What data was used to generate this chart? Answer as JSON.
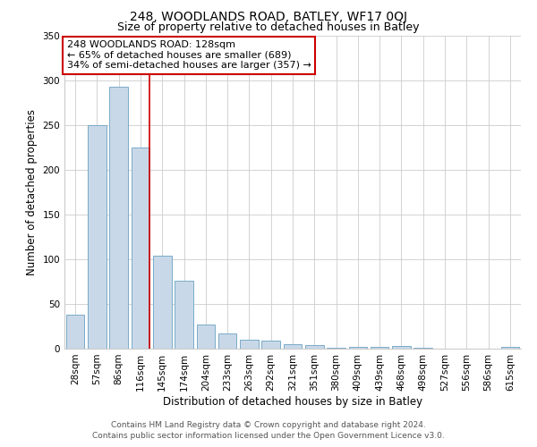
{
  "title": "248, WOODLANDS ROAD, BATLEY, WF17 0QJ",
  "subtitle": "Size of property relative to detached houses in Batley",
  "xlabel": "Distribution of detached houses by size in Batley",
  "ylabel": "Number of detached properties",
  "bar_labels": [
    "28sqm",
    "57sqm",
    "86sqm",
    "116sqm",
    "145sqm",
    "174sqm",
    "204sqm",
    "233sqm",
    "263sqm",
    "292sqm",
    "321sqm",
    "351sqm",
    "380sqm",
    "409sqm",
    "439sqm",
    "468sqm",
    "498sqm",
    "527sqm",
    "556sqm",
    "586sqm",
    "615sqm"
  ],
  "bar_values": [
    38,
    250,
    293,
    225,
    104,
    76,
    27,
    17,
    10,
    9,
    5,
    4,
    1,
    2,
    2,
    3,
    1,
    0,
    0,
    0,
    2
  ],
  "bar_color": "#c8d8e8",
  "bar_edge_color": "#7aaac8",
  "ylim": [
    0,
    350
  ],
  "yticks": [
    0,
    50,
    100,
    150,
    200,
    250,
    300,
    350
  ],
  "vline_x_index": 3,
  "vline_color": "#cc0000",
  "annotation_title": "248 WOODLANDS ROAD: 128sqm",
  "annotation_line1": "← 65% of detached houses are smaller (689)",
  "annotation_line2": "34% of semi-detached houses are larger (357) →",
  "annotation_box_color": "#ffffff",
  "annotation_box_edge_color": "#cc0000",
  "footer_line1": "Contains HM Land Registry data © Crown copyright and database right 2024.",
  "footer_line2": "Contains public sector information licensed under the Open Government Licence v3.0.",
  "background_color": "#ffffff",
  "plot_background_color": "#ffffff",
  "grid_color": "#cccccc",
  "title_fontsize": 10,
  "subtitle_fontsize": 9,
  "axis_label_fontsize": 8.5,
  "tick_fontsize": 7.5,
  "annotation_fontsize": 8,
  "footer_fontsize": 6.5
}
